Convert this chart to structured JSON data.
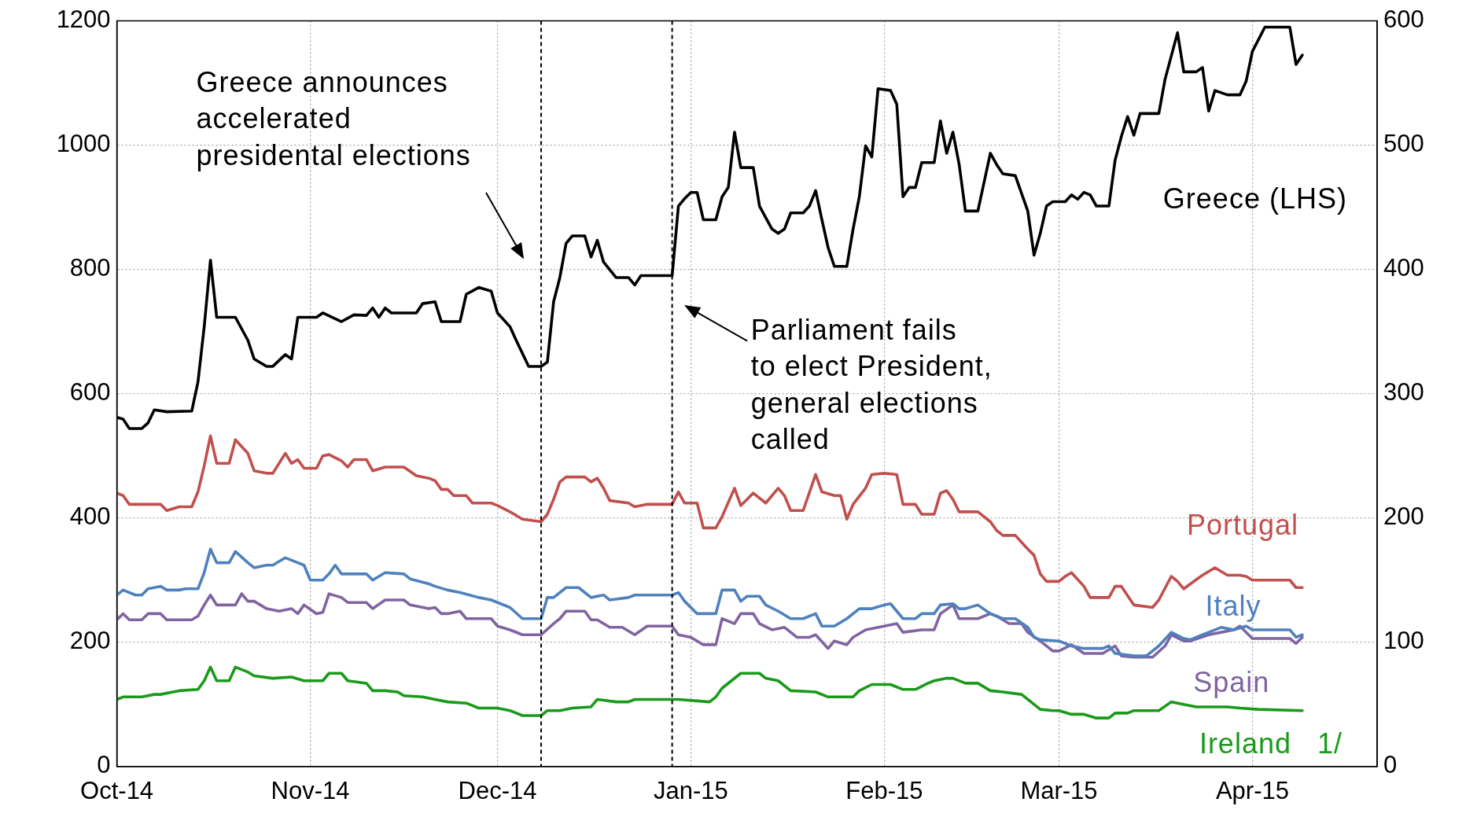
{
  "chart_data": {
    "type": "line",
    "legend": false,
    "grid": true,
    "line_style": "solid",
    "xlim": [
      "2014-10-01",
      "2015-04-21"
    ],
    "xticks": [
      {
        "value": "2014-10-01",
        "label": "Oct-14"
      },
      {
        "value": "2014-11-01",
        "label": "Nov-14"
      },
      {
        "value": "2014-12-01",
        "label": "Dec-14"
      },
      {
        "value": "2015-01-01",
        "label": "Jan-15"
      },
      {
        "value": "2015-02-01",
        "label": "Feb-15"
      },
      {
        "value": "2015-03-01",
        "label": "Mar-15"
      },
      {
        "value": "2015-04-01",
        "label": "Apr-15"
      }
    ],
    "ylim": [
      0,
      1200
    ],
    "yticks": [
      0,
      200,
      400,
      600,
      800,
      1000,
      1200
    ],
    "y2lim": [
      0,
      600
    ],
    "y2ticks": [
      0,
      100,
      200,
      300,
      400,
      500,
      600
    ],
    "ref_lines": [
      {
        "axis": "x",
        "value": "2014-12-08",
        "line_style": "dashed",
        "color": "#000000"
      },
      {
        "axis": "x",
        "value": "2014-12-29",
        "line_style": "dashed",
        "color": "#000000"
      }
    ],
    "annotations": [
      "Greece announces accelerated presidental elections",
      "Parliament fails to elect President, general elections called"
    ],
    "series": [
      {
        "name": "Greece (LHS)",
        "color": "#000000",
        "x": [
          "2014-10-01",
          "2014-10-02",
          "2014-10-03",
          "2014-10-05",
          "2014-10-06",
          "2014-10-07",
          "2014-10-09",
          "2014-10-13",
          "2014-10-14",
          "2014-10-15",
          "2014-10-16",
          "2014-10-17",
          "2014-10-20",
          "2014-10-22",
          "2014-10-23",
          "2014-10-25",
          "2014-10-26",
          "2014-10-28",
          "2014-10-29",
          "2014-10-30",
          "2014-11-02",
          "2014-11-03",
          "2014-11-06",
          "2014-11-08",
          "2014-11-10",
          "2014-11-11",
          "2014-11-12",
          "2014-11-13",
          "2014-11-14",
          "2014-11-18",
          "2014-11-19",
          "2014-11-21",
          "2014-11-22",
          "2014-11-25",
          "2014-11-26",
          "2014-11-28",
          "2014-11-30",
          "2014-12-01",
          "2014-12-03",
          "2014-12-04",
          "2014-12-06",
          "2014-12-08",
          "2014-12-09",
          "2014-12-10",
          "2014-12-11",
          "2014-12-12",
          "2014-12-13",
          "2014-12-15",
          "2014-12-16",
          "2014-12-17",
          "2014-12-18",
          "2014-12-20",
          "2014-12-22",
          "2014-12-23",
          "2014-12-24",
          "2014-12-29",
          "2014-12-30",
          "2014-12-31",
          "2015-01-01",
          "2015-01-02",
          "2015-01-03",
          "2015-01-05",
          "2015-01-06",
          "2015-01-07",
          "2015-01-08",
          "2015-01-09",
          "2015-01-11",
          "2015-01-12",
          "2015-01-14",
          "2015-01-15",
          "2015-01-16",
          "2015-01-17",
          "2015-01-19",
          "2015-01-20",
          "2015-01-21",
          "2015-01-22",
          "2015-01-23",
          "2015-01-24",
          "2015-01-26",
          "2015-01-27",
          "2015-01-28",
          "2015-01-29",
          "2015-01-30",
          "2015-01-31",
          "2015-02-02",
          "2015-02-03",
          "2015-02-04",
          "2015-02-05",
          "2015-02-06",
          "2015-02-07",
          "2015-02-09",
          "2015-02-10",
          "2015-02-11",
          "2015-02-12",
          "2015-02-13",
          "2015-02-14",
          "2015-02-16",
          "2015-02-18",
          "2015-02-19",
          "2015-02-20",
          "2015-02-22",
          "2015-02-24",
          "2015-02-25",
          "2015-02-26",
          "2015-02-27",
          "2015-02-28",
          "2015-03-02",
          "2015-03-03",
          "2015-03-04",
          "2015-03-05",
          "2015-03-06",
          "2015-03-07",
          "2015-03-09",
          "2015-03-10",
          "2015-03-11",
          "2015-03-12",
          "2015-03-13",
          "2015-03-14",
          "2015-03-17",
          "2015-03-18",
          "2015-03-20",
          "2015-03-21",
          "2015-03-23",
          "2015-03-24",
          "2015-03-25",
          "2015-03-26",
          "2015-03-28",
          "2015-03-30",
          "2015-03-31",
          "2015-04-01",
          "2015-04-03",
          "2015-04-07",
          "2015-04-08",
          "2015-04-09"
        ],
        "values": [
          562,
          559,
          544,
          544,
          553,
          574,
          571,
          572,
          619,
          708,
          815,
          723,
          723,
          686,
          656,
          644,
          644,
          663,
          656,
          723,
          723,
          730,
          716,
          727,
          726,
          738,
          723,
          738,
          730,
          730,
          745,
          748,
          716,
          716,
          760,
          771,
          765,
          730,
          708,
          686,
          644,
          644,
          651,
          748,
          787,
          842,
          854,
          854,
          820,
          847,
          812,
          787,
          787,
          775,
          790,
          790,
          902,
          914,
          924,
          924,
          880,
          880,
          917,
          932,
          1021,
          964,
          964,
          902,
          865,
          858,
          865,
          891,
          891,
          902,
          927,
          880,
          835,
          805,
          805,
          865,
          917,
          999,
          981,
          1091,
          1088,
          1066,
          917,
          932,
          932,
          972,
          972,
          1039,
          987,
          1021,
          969,
          894,
          894,
          987,
          969,
          954,
          951,
          894,
          823,
          858,
          902,
          909,
          909,
          920,
          913,
          924,
          920,
          902,
          902,
          976,
          1014,
          1046,
          1016,
          1051,
          1051,
          1106,
          1181,
          1118,
          1118,
          1125,
          1055,
          1088,
          1081,
          1081,
          1103,
          1151,
          1190,
          1190,
          1130,
          1145
        ]
      },
      {
        "name": "Portugal",
        "color": "#c0504d",
        "axis": "y2",
        "x": [
          "2014-10-01",
          "2014-10-02",
          "2014-10-03",
          "2014-10-08",
          "2014-10-09",
          "2014-10-11",
          "2014-10-13",
          "2014-10-14",
          "2014-10-15",
          "2014-10-16",
          "2014-10-17",
          "2014-10-19",
          "2014-10-20",
          "2014-10-22",
          "2014-10-23",
          "2014-10-25",
          "2014-10-26",
          "2014-10-28",
          "2014-10-29",
          "2014-10-30",
          "2014-10-31",
          "2014-11-02",
          "2014-11-03",
          "2014-11-04",
          "2014-11-06",
          "2014-11-07",
          "2014-11-08",
          "2014-11-10",
          "2014-11-11",
          "2014-11-13",
          "2014-11-16",
          "2014-11-18",
          "2014-11-20",
          "2014-11-21",
          "2014-11-22",
          "2014-11-23",
          "2014-11-24",
          "2014-11-26",
          "2014-11-27",
          "2014-11-30",
          "2014-12-01",
          "2014-12-03",
          "2014-12-05",
          "2014-12-08",
          "2014-12-09",
          "2014-12-10",
          "2014-12-11",
          "2014-12-12",
          "2014-12-15",
          "2014-12-16",
          "2014-12-17",
          "2014-12-18",
          "2014-12-19",
          "2014-12-22",
          "2014-12-23",
          "2014-12-25",
          "2014-12-29",
          "2014-12-30",
          "2014-12-31",
          "2015-01-02",
          "2015-01-03",
          "2015-01-05",
          "2015-01-06",
          "2015-01-08",
          "2015-01-09",
          "2015-01-10",
          "2015-01-11",
          "2015-01-13",
          "2015-01-15",
          "2015-01-16",
          "2015-01-17",
          "2015-01-19",
          "2015-01-21",
          "2015-01-22",
          "2015-01-24",
          "2015-01-25",
          "2015-01-26",
          "2015-01-27",
          "2015-01-29",
          "2015-01-30",
          "2015-02-01",
          "2015-02-03",
          "2015-02-04",
          "2015-02-06",
          "2015-02-07",
          "2015-02-09",
          "2015-02-10",
          "2015-02-11",
          "2015-02-12",
          "2015-02-13",
          "2015-02-16",
          "2015-02-18",
          "2015-02-19",
          "2015-02-20",
          "2015-02-22",
          "2015-02-24",
          "2015-02-25",
          "2015-02-26",
          "2015-02-27",
          "2015-03-01",
          "2015-03-02",
          "2015-03-03",
          "2015-03-05",
          "2015-03-06",
          "2015-03-09",
          "2015-03-10",
          "2015-03-11",
          "2015-03-13",
          "2015-03-16",
          "2015-03-17",
          "2015-03-19",
          "2015-03-20",
          "2015-03-21",
          "2015-03-24",
          "2015-03-26",
          "2015-03-28",
          "2015-03-30",
          "2015-03-31",
          "2015-04-01",
          "2015-04-07",
          "2015-04-08",
          "2015-04-09"
        ],
        "values": [
          220,
          218,
          211,
          211,
          206,
          209,
          209,
          221,
          242,
          266,
          244,
          244,
          263,
          252,
          238,
          236,
          236,
          252,
          244,
          247,
          240,
          240,
          250,
          251,
          246,
          241,
          247,
          247,
          238,
          241,
          241,
          234,
          232,
          230,
          223,
          223,
          218,
          218,
          212,
          212,
          210,
          205,
          199,
          197,
          203,
          215,
          229,
          233,
          233,
          229,
          232,
          224,
          214,
          212,
          209,
          211,
          211,
          221,
          212,
          212,
          192,
          192,
          201,
          224,
          210,
          215,
          220,
          212,
          224,
          218,
          206,
          206,
          235,
          221,
          218,
          218,
          199,
          211,
          224,
          235,
          236,
          235,
          211,
          211,
          203,
          203,
          220,
          222,
          215,
          205,
          205,
          197,
          190,
          186,
          186,
          175,
          170,
          155,
          149,
          149,
          153,
          156,
          145,
          136,
          136,
          145,
          145,
          130,
          128,
          134,
          153,
          149,
          143,
          154,
          160,
          154,
          154,
          153,
          150,
          150,
          144,
          144
        ]
      },
      {
        "name": "Italy",
        "color": "#4f81bd",
        "axis": "y2",
        "x": [
          "2014-10-01",
          "2014-10-02",
          "2014-10-04",
          "2014-10-05",
          "2014-10-06",
          "2014-10-08",
          "2014-10-09",
          "2014-10-11",
          "2014-10-12",
          "2014-10-14",
          "2014-10-15",
          "2014-10-16",
          "2014-10-17",
          "2014-10-19",
          "2014-10-20",
          "2014-10-22",
          "2014-10-23",
          "2014-10-25",
          "2014-10-26",
          "2014-10-28",
          "2014-10-30",
          "2014-10-31",
          "2014-11-01",
          "2014-11-03",
          "2014-11-04",
          "2014-11-05",
          "2014-11-06",
          "2014-11-10",
          "2014-11-11",
          "2014-11-13",
          "2014-11-16",
          "2014-11-17",
          "2014-11-20",
          "2014-11-21",
          "2014-11-23",
          "2014-11-25",
          "2014-11-28",
          "2014-11-30",
          "2014-12-03",
          "2014-12-05",
          "2014-12-08",
          "2014-12-09",
          "2014-12-10",
          "2014-12-12",
          "2014-12-14",
          "2014-12-16",
          "2014-12-18",
          "2014-12-19",
          "2014-12-22",
          "2014-12-23",
          "2014-12-29",
          "2014-12-30",
          "2014-12-31",
          "2015-01-02",
          "2015-01-05",
          "2015-01-06",
          "2015-01-08",
          "2015-01-09",
          "2015-01-10",
          "2015-01-12",
          "2015-01-13",
          "2015-01-15",
          "2015-01-17",
          "2015-01-19",
          "2015-01-21",
          "2015-01-22",
          "2015-01-24",
          "2015-01-26",
          "2015-01-28",
          "2015-01-30",
          "2015-02-01",
          "2015-02-02",
          "2015-02-04",
          "2015-02-06",
          "2015-02-07",
          "2015-02-09",
          "2015-02-10",
          "2015-02-12",
          "2015-02-13",
          "2015-02-14",
          "2015-02-16",
          "2015-02-18",
          "2015-02-20",
          "2015-02-22",
          "2015-02-24",
          "2015-02-25",
          "2015-02-26",
          "2015-03-01",
          "2015-03-03",
          "2015-03-05",
          "2015-03-08",
          "2015-03-09",
          "2015-03-10",
          "2015-03-13",
          "2015-03-15",
          "2015-03-17",
          "2015-03-19",
          "2015-03-21",
          "2015-03-22",
          "2015-03-25",
          "2015-03-27",
          "2015-03-29",
          "2015-03-31",
          "2015-04-01",
          "2015-04-07",
          "2015-04-08",
          "2015-04-09"
        ],
        "values": [
          138,
          142,
          138,
          138,
          143,
          145,
          142,
          142,
          143,
          143,
          156,
          175,
          164,
          164,
          173,
          164,
          160,
          162,
          162,
          168,
          164,
          162,
          150,
          150,
          155,
          162,
          155,
          155,
          150,
          156,
          155,
          151,
          147,
          145,
          142,
          140,
          136,
          134,
          128,
          119,
          119,
          136,
          136,
          144,
          144,
          136,
          138,
          134,
          136,
          138,
          138,
          140,
          133,
          123,
          123,
          142,
          142,
          133,
          137,
          137,
          130,
          125,
          119,
          119,
          123,
          113,
          113,
          119,
          127,
          127,
          130,
          131,
          119,
          119,
          123,
          123,
          130,
          131,
          127,
          127,
          130,
          123,
          119,
          119,
          112,
          104,
          102,
          101,
          97,
          95,
          95,
          97,
          91,
          89,
          89,
          97,
          108,
          103,
          102,
          108,
          112,
          110,
          113,
          110,
          110,
          104,
          106
        ]
      },
      {
        "name": "Spain",
        "color": "#8064a2",
        "axis": "y2",
        "x": [
          "2014-10-01",
          "2014-10-02",
          "2014-10-03",
          "2014-10-05",
          "2014-10-06",
          "2014-10-08",
          "2014-10-09",
          "2014-10-13",
          "2014-10-14",
          "2014-10-15",
          "2014-10-16",
          "2014-10-17",
          "2014-10-20",
          "2014-10-21",
          "2014-10-22",
          "2014-10-23",
          "2014-10-25",
          "2014-10-27",
          "2014-10-29",
          "2014-10-30",
          "2014-10-31",
          "2014-11-02",
          "2014-11-03",
          "2014-11-04",
          "2014-11-06",
          "2014-11-07",
          "2014-11-10",
          "2014-11-11",
          "2014-11-13",
          "2014-11-16",
          "2014-11-17",
          "2014-11-20",
          "2014-11-21",
          "2014-11-22",
          "2014-11-23",
          "2014-11-25",
          "2014-11-26",
          "2014-11-30",
          "2014-12-01",
          "2014-12-03",
          "2014-12-05",
          "2014-12-08",
          "2014-12-10",
          "2014-12-11",
          "2014-12-12",
          "2014-12-15",
          "2014-12-16",
          "2014-12-17",
          "2014-12-19",
          "2014-12-21",
          "2014-12-23",
          "2014-12-25",
          "2014-12-29",
          "2014-12-30",
          "2015-01-01",
          "2015-01-03",
          "2015-01-05",
          "2015-01-06",
          "2015-01-08",
          "2015-01-09",
          "2015-01-11",
          "2015-01-12",
          "2015-01-14",
          "2015-01-16",
          "2015-01-18",
          "2015-01-20",
          "2015-01-21",
          "2015-01-23",
          "2015-01-24",
          "2015-01-26",
          "2015-01-27",
          "2015-01-29",
          "2015-02-01",
          "2015-02-03",
          "2015-02-04",
          "2015-02-07",
          "2015-02-09",
          "2015-02-10",
          "2015-02-12",
          "2015-02-13",
          "2015-02-16",
          "2015-02-18",
          "2015-02-19",
          "2015-02-21",
          "2015-02-23",
          "2015-02-24",
          "2015-02-26",
          "2015-02-28",
          "2015-03-01",
          "2015-03-03",
          "2015-03-05",
          "2015-03-08",
          "2015-03-10",
          "2015-03-11",
          "2015-03-13",
          "2015-03-16",
          "2015-03-18",
          "2015-03-19",
          "2015-03-21",
          "2015-03-22",
          "2015-03-25",
          "2015-03-27",
          "2015-03-29",
          "2015-03-30",
          "2015-04-01",
          "2015-04-07",
          "2015-04-08",
          "2015-04-09"
        ],
        "values": [
          118,
          123,
          118,
          118,
          123,
          123,
          118,
          118,
          121,
          130,
          138,
          130,
          130,
          139,
          133,
          133,
          127,
          125,
          127,
          123,
          130,
          123,
          124,
          139,
          136,
          132,
          132,
          127,
          134,
          134,
          130,
          127,
          128,
          123,
          123,
          125,
          119,
          119,
          113,
          110,
          106,
          106,
          115,
          119,
          125,
          125,
          118,
          118,
          112,
          112,
          106,
          113,
          113,
          106,
          104,
          98,
          98,
          119,
          115,
          123,
          123,
          115,
          110,
          112,
          104,
          104,
          106,
          95,
          101,
          98,
          104,
          110,
          113,
          115,
          108,
          110,
          110,
          123,
          130,
          119,
          119,
          123,
          121,
          115,
          115,
          108,
          101,
          93,
          93,
          98,
          91,
          91,
          97,
          89,
          88,
          88,
          97,
          106,
          101,
          101,
          106,
          108,
          110,
          113,
          103,
          103,
          99,
          104
        ]
      },
      {
        "name": "Ireland   1/",
        "color": "#1a9a1a",
        "axis": "y2",
        "x": [
          "2014-10-01",
          "2014-10-02",
          "2014-10-05",
          "2014-10-07",
          "2014-10-08",
          "2014-10-10",
          "2014-10-11",
          "2014-10-14",
          "2014-10-15",
          "2014-10-16",
          "2014-10-17",
          "2014-10-19",
          "2014-10-20",
          "2014-10-22",
          "2014-10-23",
          "2014-10-26",
          "2014-10-29",
          "2014-10-31",
          "2014-11-03",
          "2014-11-04",
          "2014-11-06",
          "2014-11-07",
          "2014-11-10",
          "2014-11-11",
          "2014-11-13",
          "2014-11-15",
          "2014-11-16",
          "2014-11-19",
          "2014-11-21",
          "2014-11-23",
          "2014-11-26",
          "2014-11-28",
          "2014-12-01",
          "2014-12-03",
          "2014-12-05",
          "2014-12-08",
          "2014-12-09",
          "2014-12-11",
          "2014-12-13",
          "2014-12-16",
          "2014-12-17",
          "2014-12-20",
          "2014-12-22",
          "2014-12-23",
          "2014-12-30",
          "2015-01-04",
          "2015-01-05",
          "2015-01-06",
          "2015-01-09",
          "2015-01-12",
          "2015-01-13",
          "2015-01-15",
          "2015-01-17",
          "2015-01-21",
          "2015-01-23",
          "2015-01-27",
          "2015-01-28",
          "2015-01-30",
          "2015-02-02",
          "2015-02-04",
          "2015-02-06",
          "2015-02-08",
          "2015-02-09",
          "2015-02-11",
          "2015-02-12",
          "2015-02-14",
          "2015-02-16",
          "2015-02-18",
          "2015-02-20",
          "2015-02-23",
          "2015-02-24",
          "2015-02-26",
          "2015-02-28",
          "2015-03-01",
          "2015-03-03",
          "2015-03-05",
          "2015-03-07",
          "2015-03-09",
          "2015-03-10",
          "2015-03-12",
          "2015-03-13",
          "2015-03-17",
          "2015-03-19",
          "2015-03-20",
          "2015-03-23",
          "2015-03-28",
          "2015-03-30",
          "2015-04-02",
          "2015-04-09"
        ],
        "values": [
          54,
          56,
          56,
          58,
          58,
          60,
          61,
          62,
          69,
          80,
          69,
          69,
          80,
          76,
          73,
          71,
          72,
          69,
          69,
          75,
          75,
          69,
          67,
          61,
          61,
          60,
          57,
          56,
          54,
          52,
          51,
          47,
          47,
          45,
          41,
          41,
          45,
          45,
          47,
          48,
          54,
          52,
          52,
          54,
          54,
          52,
          56,
          63,
          75,
          75,
          71,
          69,
          61,
          60,
          56,
          56,
          61,
          66,
          66,
          62,
          62,
          67,
          69,
          71,
          71,
          67,
          67,
          61,
          60,
          58,
          54,
          46,
          45,
          45,
          42,
          42,
          39,
          39,
          43,
          43,
          45,
          45,
          52,
          51,
          48,
          48,
          47,
          46,
          45
        ]
      }
    ]
  }
}
